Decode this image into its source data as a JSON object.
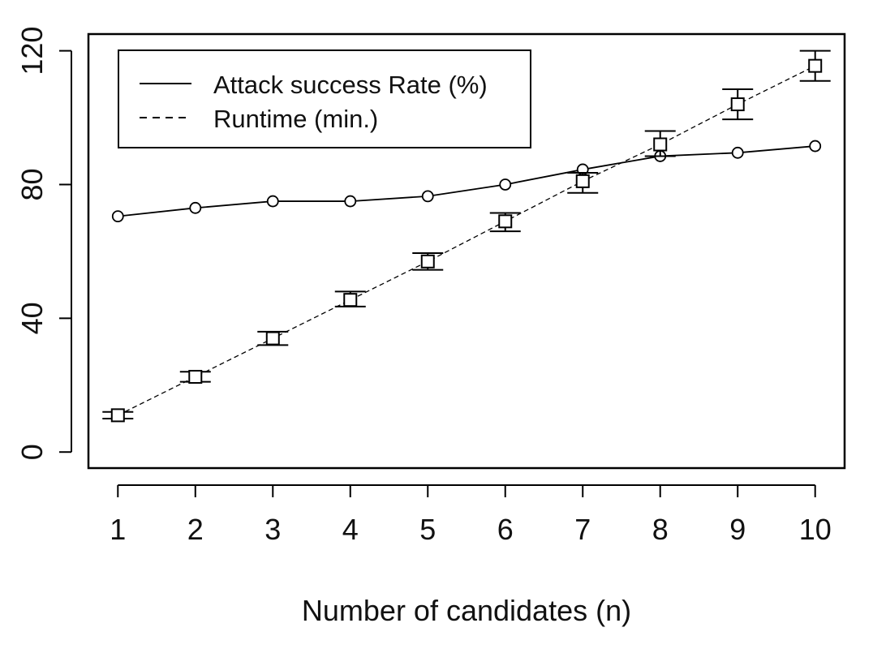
{
  "chart_data": {
    "type": "line",
    "title": "",
    "xlabel": "Number of candidates (n)",
    "ylabel": "",
    "x": [
      1,
      2,
      3,
      4,
      5,
      6,
      7,
      8,
      9,
      10
    ],
    "x_ticks": [
      1,
      2,
      3,
      4,
      5,
      6,
      7,
      8,
      9,
      10
    ],
    "y_ticks": [
      0,
      40,
      80,
      120
    ],
    "xlim": [
      0.62,
      10.38
    ],
    "ylim": [
      -4.8,
      125
    ],
    "grid": false,
    "legend_position": "top-left",
    "series": [
      {
        "name": "Attack success Rate (%)",
        "line_style": "solid",
        "marker": "circle",
        "values": [
          70.5,
          73,
          75,
          75,
          76.5,
          80,
          84.5,
          88.5,
          89.5,
          91.5
        ]
      },
      {
        "name": "Runtime (min.)",
        "line_style": "dashed",
        "marker": "square",
        "values": [
          11,
          22.5,
          34,
          45.5,
          57,
          69,
          81,
          92,
          104,
          115.5
        ],
        "error_low": [
          10,
          21,
          32,
          43.5,
          54.5,
          66,
          77.5,
          88.5,
          99.5,
          111
        ],
        "error_high": [
          12,
          24,
          36,
          48,
          59.5,
          71.5,
          83.5,
          96,
          108.5,
          120
        ]
      }
    ]
  }
}
